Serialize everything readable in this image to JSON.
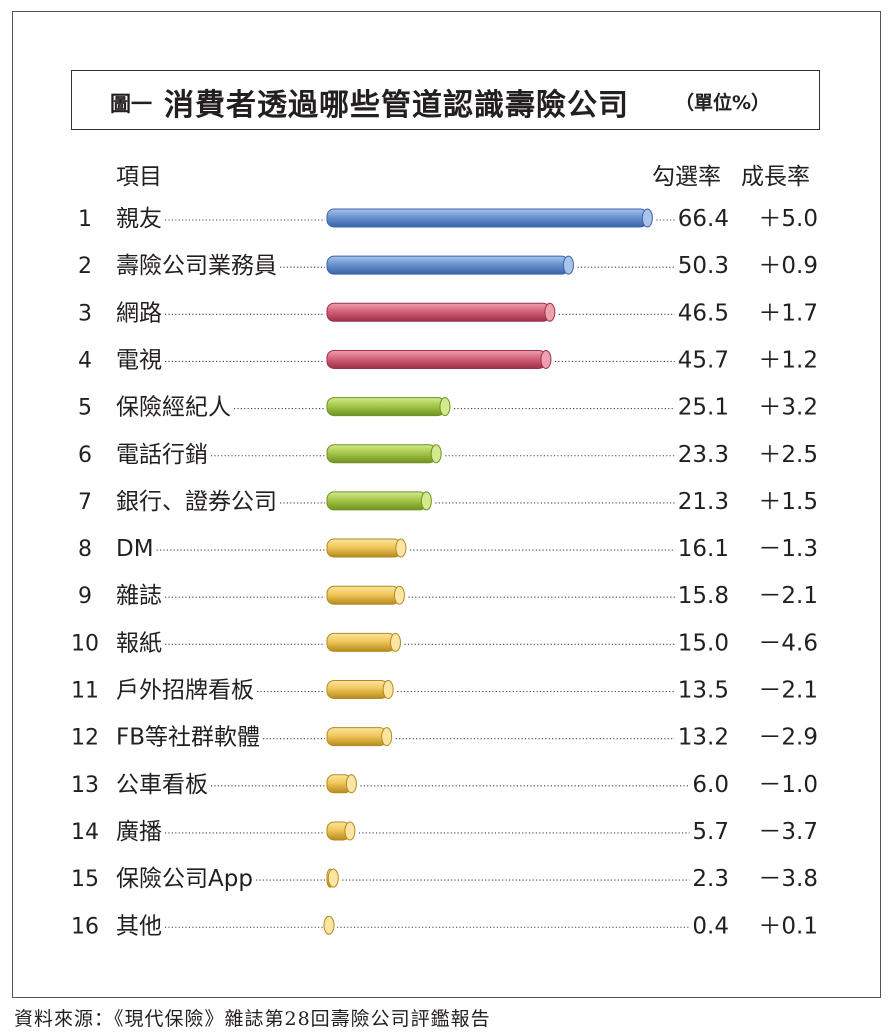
{
  "title": {
    "prefix": "圖一",
    "main": "消費者透過哪些管道認識壽險公司",
    "unit": "（單位%）"
  },
  "headers": {
    "item": "項目",
    "rate": "勾選率",
    "growth": "成長率"
  },
  "source": "資料來源：《現代保險》雜誌第28回壽險公司評鑑報告",
  "colors": {
    "blue": "#6b93cf",
    "red": "#d2627a",
    "green": "#a6c84a",
    "yellow": "#f1c75a"
  },
  "chart_data": {
    "type": "bar",
    "title": "消費者透過哪些管道認識壽險公司",
    "unit": "%",
    "columns": [
      "項目",
      "勾選率",
      "成長率"
    ],
    "rows": [
      {
        "rank": "1",
        "label": "親友",
        "value": 66.4,
        "value_text": "66.4",
        "growth": "＋5.0",
        "color": "blue"
      },
      {
        "rank": "2",
        "label": "壽險公司業務員",
        "value": 50.3,
        "value_text": "50.3",
        "growth": "＋0.9",
        "color": "blue"
      },
      {
        "rank": "3",
        "label": "網路",
        "value": 46.5,
        "value_text": "46.5",
        "growth": "＋1.7",
        "color": "red"
      },
      {
        "rank": "4",
        "label": "電視",
        "value": 45.7,
        "value_text": "45.7",
        "growth": "＋1.2",
        "color": "red"
      },
      {
        "rank": "5",
        "label": "保險經紀人",
        "value": 25.1,
        "value_text": "25.1",
        "growth": "＋3.2",
        "color": "green"
      },
      {
        "rank": "6",
        "label": "電話行銷",
        "value": 23.3,
        "value_text": "23.3",
        "growth": "＋2.5",
        "color": "green"
      },
      {
        "rank": "7",
        "label": "銀行、證券公司",
        "value": 21.3,
        "value_text": "21.3",
        "growth": "＋1.5",
        "color": "green"
      },
      {
        "rank": "8",
        "label": "DM",
        "value": 16.1,
        "value_text": "16.1",
        "growth": "－1.3",
        "color": "yellow"
      },
      {
        "rank": "9",
        "label": "雜誌",
        "value": 15.8,
        "value_text": "15.8",
        "growth": "－2.1",
        "color": "yellow"
      },
      {
        "rank": "10",
        "label": "報紙",
        "value": 15.0,
        "value_text": "15.0",
        "growth": "－4.6",
        "color": "yellow"
      },
      {
        "rank": "11",
        "label": "戶外招牌看板",
        "value": 13.5,
        "value_text": "13.5",
        "growth": "－2.1",
        "color": "yellow"
      },
      {
        "rank": "12",
        "label": "FB等社群軟體",
        "value": 13.2,
        "value_text": "13.2",
        "growth": "－2.9",
        "color": "yellow"
      },
      {
        "rank": "13",
        "label": "公車看板",
        "value": 6.0,
        "value_text": "6.0",
        "growth": "－1.0",
        "color": "yellow"
      },
      {
        "rank": "14",
        "label": "廣播",
        "value": 5.7,
        "value_text": "5.7",
        "growth": "－3.7",
        "color": "yellow"
      },
      {
        "rank": "15",
        "label": "保險公司App",
        "value": 2.3,
        "value_text": "2.3",
        "growth": "－3.8",
        "color": "yellow"
      },
      {
        "rank": "16",
        "label": "其他",
        "value": 0.4,
        "value_text": "0.4",
        "growth": "＋0.1",
        "color": "yellow"
      }
    ],
    "grid": false,
    "legend": "none"
  }
}
